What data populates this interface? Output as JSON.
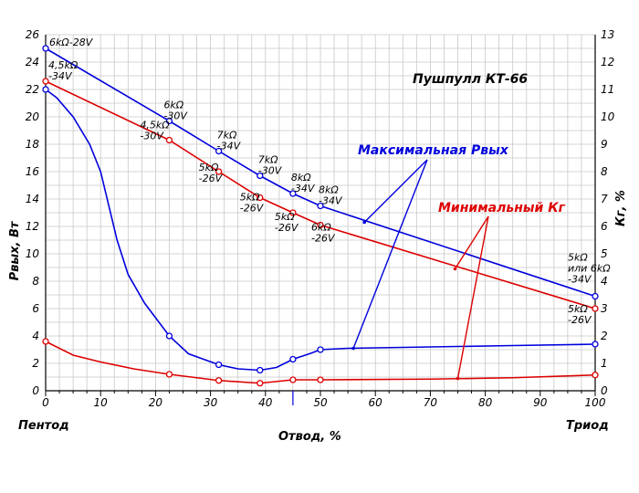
{
  "chart_data": {
    "type": "line",
    "title": "Пушпулл  КТ-66",
    "xlabel": "Отвод, %",
    "ylabel_left": "Рвых, Вт",
    "ylabel_right": "Кг, %",
    "corner_left": "Пентод",
    "corner_right": "Триод",
    "xlim": [
      0,
      100
    ],
    "ylim_left": [
      0,
      26
    ],
    "ylim_right": [
      0,
      13
    ],
    "x_ticks": [
      "0",
      "10",
      "20",
      "30",
      "40",
      "50",
      "60",
      "70",
      "80",
      "90",
      "100"
    ],
    "y_ticks_left": [
      "0",
      "2",
      "4",
      "6",
      "8",
      "10",
      "12",
      "14",
      "16",
      "18",
      "20",
      "22",
      "24",
      "26"
    ],
    "y_ticks_right": [
      "0",
      "1",
      "2",
      "3",
      "4",
      "5",
      "6",
      "7",
      "8",
      "9",
      "10",
      "11",
      "12",
      "13"
    ],
    "grid": true,
    "series": [
      {
        "name": "Максимальная Рвых",
        "axis": "left",
        "color": "#0000dd",
        "points": [
          [
            0,
            25.0
          ],
          [
            22.5,
            19.7
          ],
          [
            31.5,
            17.5
          ],
          [
            39,
            15.7
          ],
          [
            45,
            14.4
          ],
          [
            50,
            13.5
          ],
          [
            100,
            6.9
          ]
        ]
      },
      {
        "axis": "left",
        "color": "#0000dd",
        "points": [
          [
            0,
            22.0
          ],
          [
            2,
            21.4
          ],
          [
            5,
            20.0
          ],
          [
            8,
            18.0
          ],
          [
            10,
            16.0
          ],
          [
            13,
            11.0
          ],
          [
            15,
            8.5
          ],
          [
            18,
            6.4
          ],
          [
            22.5,
            4.0
          ],
          [
            26,
            2.7
          ],
          [
            31.5,
            1.9
          ],
          [
            35,
            1.6
          ],
          [
            39,
            1.5
          ],
          [
            42,
            1.7
          ],
          [
            45,
            2.3
          ],
          [
            48,
            2.7
          ],
          [
            50,
            3.0
          ],
          [
            55,
            3.1
          ],
          [
            70,
            3.2
          ],
          [
            85,
            3.3
          ],
          [
            100,
            3.4
          ]
        ]
      },
      {
        "name": "Минимальный Кг",
        "axis": "left",
        "color": "#dd0000",
        "points": [
          [
            0,
            22.6
          ],
          [
            22.5,
            18.3
          ],
          [
            31.5,
            16.0
          ],
          [
            39,
            14.1
          ],
          [
            45,
            13.0
          ],
          [
            50,
            12.1
          ],
          [
            100,
            6.0
          ]
        ]
      },
      {
        "axis": "left",
        "color": "#dd0000",
        "points": [
          [
            0,
            3.6
          ],
          [
            5,
            2.6
          ],
          [
            10,
            2.1
          ],
          [
            16,
            1.6
          ],
          [
            22.5,
            1.2
          ],
          [
            31.5,
            0.75
          ],
          [
            39,
            0.55
          ],
          [
            45,
            0.8
          ],
          [
            50,
            0.8
          ],
          [
            70,
            0.85
          ],
          [
            85,
            0.95
          ],
          [
            100,
            1.15
          ]
        ]
      }
    ],
    "point_labels": [
      {
        "x": 0,
        "y": 25.0,
        "text": "6kΩ-28V"
      },
      {
        "x": 0,
        "y": 22.6,
        "text": "4,5kΩ",
        "text2": "-34V"
      },
      {
        "x": 22.5,
        "y": 19.7,
        "text": "6kΩ",
        "text2": "-30V"
      },
      {
        "x": 31.5,
        "y": 17.5,
        "text": "7kΩ",
        "text2": "-34V"
      },
      {
        "x": 39,
        "y": 15.7,
        "text": "7kΩ",
        "text2": "-30V"
      },
      {
        "x": 45,
        "y": 14.4,
        "text": "8kΩ",
        "text2": "-34V"
      },
      {
        "x": 50,
        "y": 13.5,
        "text": "8kΩ",
        "text2": "-34V"
      },
      {
        "x": 22.5,
        "y": 18.3,
        "text": "4,5kΩ",
        "text2": "-30V"
      },
      {
        "x": 31.5,
        "y": 16.0,
        "text": "5kΩ",
        "text2": "-26V"
      },
      {
        "x": 39,
        "y": 14.1,
        "text": "5kΩ",
        "text2": "-26V"
      },
      {
        "x": 45,
        "y": 13.0,
        "text": "5kΩ",
        "text2": "-26V"
      },
      {
        "x": 50,
        "y": 12.1,
        "text": "6kΩ",
        "text2": "-26V"
      },
      {
        "x": 100,
        "y": 6.9,
        "text": "5kΩ",
        "text2": "или 6kΩ",
        "text3": "-34V"
      },
      {
        "x": 100,
        "y": 6.0,
        "text": "5kΩ",
        "text2": "-26V"
      }
    ]
  }
}
